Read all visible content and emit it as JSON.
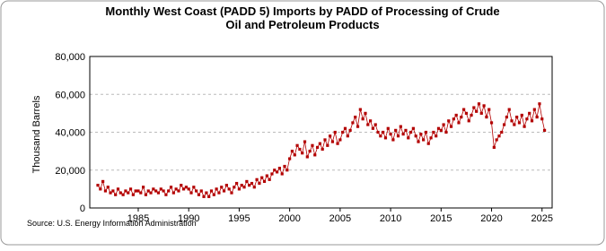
{
  "chart_data": {
    "type": "line",
    "title": "Monthly West Coast (PADD 5) Imports by PADD of Processing of Crude Oil and Petroleum Products",
    "y_label": "Thousand Barrels",
    "source": "Source: U.S. Energy Information Administration",
    "xlim": [
      1980.2,
      2026
    ],
    "xticks": [
      1985,
      1990,
      1995,
      2000,
      2005,
      2010,
      2015,
      2020,
      2025
    ],
    "ylim": [
      0,
      80000
    ],
    "yticks": [
      0,
      {
        "value": 20000,
        "label": "20,000"
      },
      {
        "value": 40000,
        "label": "40,000"
      },
      {
        "value": 60000,
        "label": "60,000"
      },
      {
        "value": 80000,
        "label": "80,000"
      }
    ],
    "grid": true,
    "series": [
      {
        "color": "#b30000",
        "x": [
          1981,
          1981.25,
          1981.5,
          1981.75,
          1982,
          1982.25,
          1982.5,
          1982.75,
          1983,
          1983.25,
          1983.5,
          1983.75,
          1984,
          1984.25,
          1984.5,
          1984.75,
          1985,
          1985.25,
          1985.5,
          1985.75,
          1986,
          1986.25,
          1986.5,
          1986.75,
          1987,
          1987.25,
          1987.5,
          1987.75,
          1988,
          1988.25,
          1988.5,
          1988.75,
          1989,
          1989.25,
          1989.5,
          1989.75,
          1990,
          1990.25,
          1990.5,
          1990.75,
          1991,
          1991.25,
          1991.5,
          1991.75,
          1992,
          1992.25,
          1992.5,
          1992.75,
          1993,
          1993.25,
          1993.5,
          1993.75,
          1994,
          1994.25,
          1994.5,
          1994.75,
          1995,
          1995.25,
          1995.5,
          1995.75,
          1996,
          1996.25,
          1996.5,
          1996.75,
          1997,
          1997.25,
          1997.5,
          1997.75,
          1998,
          1998.25,
          1998.5,
          1998.75,
          1999,
          1999.25,
          1999.5,
          1999.75,
          2000,
          2000.25,
          2000.5,
          2000.75,
          2001,
          2001.25,
          2001.5,
          2001.75,
          2002,
          2002.25,
          2002.5,
          2002.75,
          2003,
          2003.25,
          2003.5,
          2003.75,
          2004,
          2004.25,
          2004.5,
          2004.75,
          2005,
          2005.25,
          2005.5,
          2005.75,
          2006,
          2006.25,
          2006.5,
          2006.75,
          2007,
          2007.25,
          2007.5,
          2007.75,
          2008,
          2008.25,
          2008.5,
          2008.75,
          2009,
          2009.25,
          2009.5,
          2009.75,
          2010,
          2010.25,
          2010.5,
          2010.75,
          2011,
          2011.25,
          2011.5,
          2011.75,
          2012,
          2012.25,
          2012.5,
          2012.75,
          2013,
          2013.25,
          2013.5,
          2013.75,
          2014,
          2014.25,
          2014.5,
          2014.75,
          2015,
          2015.25,
          2015.5,
          2015.75,
          2016,
          2016.25,
          2016.5,
          2016.75,
          2017,
          2017.25,
          2017.5,
          2017.75,
          2018,
          2018.25,
          2018.5,
          2018.75,
          2019,
          2019.25,
          2019.5,
          2019.75,
          2020,
          2020.25,
          2020.5,
          2020.75,
          2021,
          2021.25,
          2021.5,
          2021.75,
          2022,
          2022.25,
          2022.5,
          2022.75,
          2023,
          2023.25,
          2023.5,
          2023.75,
          2024,
          2024.25,
          2024.5,
          2024.75,
          2025,
          2025.25
        ],
        "values": [
          12000,
          10000,
          14000,
          9000,
          11000,
          8000,
          9000,
          7000,
          10000,
          8000,
          7000,
          9000,
          8000,
          10000,
          7000,
          9000,
          9000,
          8000,
          11000,
          7000,
          9000,
          8000,
          10000,
          9000,
          8000,
          10000,
          9000,
          7000,
          9000,
          11000,
          8000,
          10000,
          9000,
          12000,
          10000,
          11000,
          10000,
          8000,
          11000,
          9000,
          7000,
          9000,
          6000,
          8000,
          6000,
          9000,
          7000,
          10000,
          8000,
          11000,
          9000,
          12000,
          10000,
          8000,
          11000,
          13000,
          10000,
          12000,
          11000,
          14000,
          12000,
          13000,
          11000,
          15000,
          13000,
          16000,
          14000,
          17000,
          15000,
          18000,
          20000,
          19000,
          21000,
          18000,
          22000,
          20000,
          26000,
          30000,
          28000,
          33000,
          31000,
          29000,
          35000,
          27000,
          30000,
          33000,
          28000,
          32000,
          34000,
          31000,
          36000,
          33000,
          38000,
          35000,
          40000,
          34000,
          36000,
          40000,
          42000,
          38000,
          41000,
          45000,
          48000,
          43000,
          52000,
          47000,
          50000,
          44000,
          46000,
          42000,
          44000,
          40000,
          38000,
          40000,
          37000,
          42000,
          39000,
          36000,
          41000,
          38000,
          43000,
          39000,
          41000,
          37000,
          40000,
          42000,
          38000,
          35000,
          39000,
          36000,
          40000,
          34000,
          37000,
          40000,
          38000,
          42000,
          41000,
          44000,
          40000,
          46000,
          43000,
          47000,
          49000,
          45000,
          48000,
          52000,
          50000,
          46000,
          49000,
          53000,
          51000,
          55000,
          50000,
          54000,
          48000,
          52000,
          45000,
          32000,
          36000,
          38000,
          40000,
          44000,
          48000,
          52000,
          46000,
          44000,
          48000,
          45000,
          49000,
          43000,
          47000,
          50000,
          46000,
          52000,
          48000,
          55000,
          47000,
          41000
        ]
      }
    ]
  }
}
